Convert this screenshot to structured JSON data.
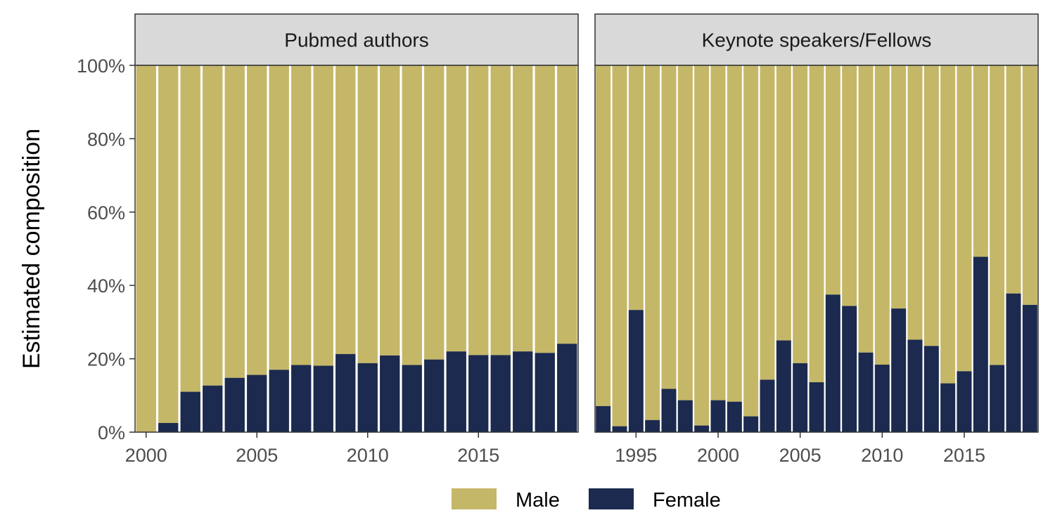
{
  "chart_data": {
    "type": "bar",
    "stacked": true,
    "ylabel": "Estimated composition",
    "ylim": [
      0,
      1
    ],
    "yticks": [
      "0%",
      "20%",
      "40%",
      "60%",
      "80%",
      "100%"
    ],
    "grid": false,
    "legend_position": "bottom",
    "legend": [
      {
        "name": "Male",
        "color": "#C5B768"
      },
      {
        "name": "Female",
        "color": "#1B2A4E"
      }
    ],
    "panels": [
      {
        "title": "Pubmed authors",
        "xlim": [
          1999.5,
          2019.5
        ],
        "xticks": [
          "2000",
          "2005",
          "2010",
          "2015"
        ],
        "x": [
          2000,
          2001,
          2002,
          2003,
          2004,
          2005,
          2006,
          2007,
          2008,
          2009,
          2010,
          2011,
          2012,
          2013,
          2014,
          2015,
          2016,
          2017,
          2018,
          2019
        ],
        "series": [
          {
            "name": "Female",
            "values": [
              0.0,
              0.025,
              0.11,
              0.127,
              0.148,
              0.156,
              0.17,
              0.183,
              0.181,
              0.213,
              0.188,
              0.209,
              0.183,
              0.198,
              0.22,
              0.21,
              0.21,
              0.22,
              0.216,
              0.241
            ]
          },
          {
            "name": "Male",
            "values": [
              1.0,
              0.975,
              0.89,
              0.873,
              0.852,
              0.844,
              0.83,
              0.817,
              0.819,
              0.787,
              0.812,
              0.791,
              0.817,
              0.802,
              0.78,
              0.79,
              0.79,
              0.78,
              0.784,
              0.759
            ]
          }
        ]
      },
      {
        "title": "Keynote speakers/Fellows",
        "xlim": [
          1992.5,
          2019.5
        ],
        "xticks": [
          "1995",
          "2000",
          "2005",
          "2010",
          "2015"
        ],
        "x": [
          1993,
          1994,
          1995,
          1996,
          1997,
          1998,
          1999,
          2000,
          2001,
          2002,
          2003,
          2004,
          2005,
          2006,
          2007,
          2008,
          2009,
          2010,
          2011,
          2012,
          2013,
          2014,
          2015,
          2016,
          2017,
          2018,
          2019
        ],
        "series": [
          {
            "name": "Female",
            "values": [
              0.071,
              0.016,
              0.333,
              0.033,
              0.118,
              0.087,
              0.018,
              0.087,
              0.083,
              0.043,
              0.143,
              0.25,
              0.188,
              0.136,
              0.375,
              0.344,
              0.217,
              0.184,
              0.337,
              0.252,
              0.235,
              0.133,
              0.166,
              0.478,
              0.183,
              0.378,
              0.347
            ]
          },
          {
            "name": "Male",
            "values": [
              0.929,
              0.984,
              0.667,
              0.967,
              0.882,
              0.913,
              0.982,
              0.913,
              0.917,
              0.957,
              0.857,
              0.75,
              0.812,
              0.864,
              0.625,
              0.656,
              0.783,
              0.816,
              0.663,
              0.748,
              0.765,
              0.867,
              0.834,
              0.522,
              0.817,
              0.622,
              0.653
            ]
          }
        ]
      }
    ]
  }
}
